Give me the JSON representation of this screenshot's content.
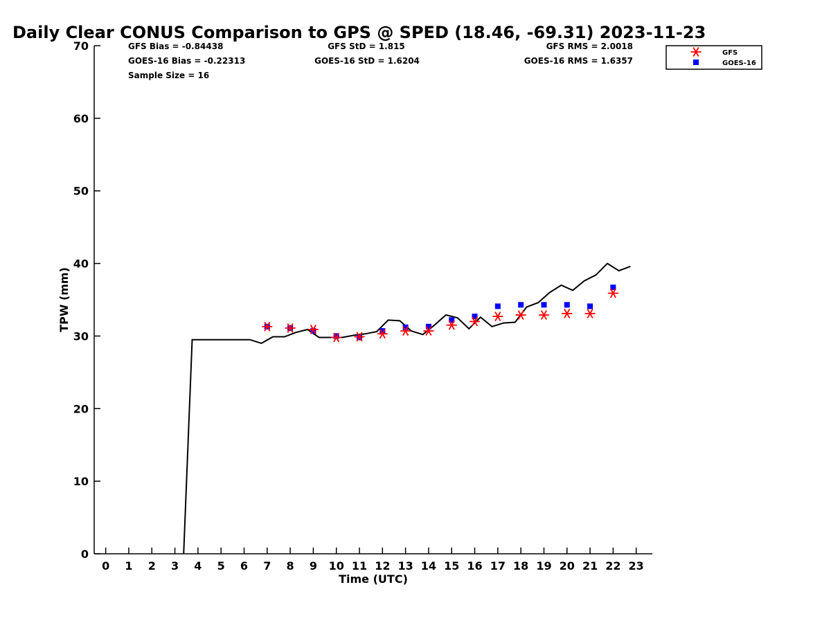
{
  "chart_data": {
    "type": "line",
    "title": "Daily Clear CONUS Comparison to GPS @ SPED (18.46, -69.31) 2023-11-23",
    "xlabel": "Time (UTC)",
    "ylabel": "TPW (mm)",
    "xlim": [
      -0.5,
      23.7
    ],
    "ylim": [
      0,
      70
    ],
    "xticks": [
      0,
      1,
      2,
      3,
      4,
      5,
      6,
      7,
      8,
      9,
      10,
      11,
      12,
      13,
      14,
      15,
      16,
      17,
      18,
      19,
      20,
      21,
      22,
      23
    ],
    "yticks": [
      0,
      10,
      20,
      30,
      40,
      50,
      60,
      70
    ],
    "grid": false,
    "legend_position": "top-right",
    "stats": {
      "gfs_bias": "GFS Bias = -0.84438",
      "gfs_std": "GFS StD = 1.815",
      "gfs_rms": "GFS RMS = 2.0018",
      "goes_bias": "GOES-16 Bias = -0.22313",
      "goes_std": "GOES-16 StD = 1.6204",
      "goes_rms": "GOES-16 RMS = 1.6357",
      "sample_size": "Sample Size = 16"
    },
    "gps_line": {
      "color": "#000000",
      "x": [
        3.38,
        3.75,
        4,
        5,
        6,
        6.25,
        6.75,
        7.25,
        7.75,
        8.25,
        8.75,
        9.25,
        9.75,
        10.25,
        10.75,
        11.25,
        11.75,
        12.25,
        12.75,
        13.25,
        13.75,
        14.25,
        14.75,
        15.25,
        15.75,
        16.25,
        16.75,
        17.25,
        17.75,
        18.25,
        18.75,
        19.25,
        19.75,
        20.25,
        20.75,
        21.25,
        21.75,
        22.25,
        22.75
      ],
      "y": [
        0,
        29.5,
        29.5,
        29.5,
        29.5,
        29.5,
        29.0,
        29.9,
        29.9,
        30.5,
        30.9,
        29.8,
        29.8,
        29.8,
        30.1,
        30.3,
        30.6,
        32.2,
        32.1,
        30.7,
        30.2,
        31.5,
        32.9,
        32.5,
        31.0,
        32.6,
        31.3,
        31.8,
        31.9,
        34.0,
        34.6,
        36.0,
        37.0,
        36.3,
        37.6,
        38.4,
        40.0,
        39.0,
        39.6
      ]
    },
    "series": [
      {
        "name": "GFS",
        "marker": "asterisk",
        "color": "#ff0000",
        "x": [
          7,
          8,
          9,
          10,
          11,
          12,
          13,
          14,
          15,
          16,
          17,
          18,
          19,
          20,
          21,
          22
        ],
        "values": [
          31.3,
          31.1,
          30.9,
          29.8,
          29.9,
          30.3,
          30.7,
          30.7,
          31.5,
          32.0,
          32.7,
          32.9,
          32.9,
          33.1,
          33.1,
          35.9
        ]
      },
      {
        "name": "GOES-16",
        "marker": "square",
        "color": "#0000ff",
        "x": [
          7,
          8,
          9,
          10,
          11,
          12,
          13,
          14,
          15,
          16,
          17,
          18,
          19,
          20,
          21,
          22
        ],
        "values": [
          31.3,
          31.1,
          30.7,
          30.0,
          29.8,
          30.7,
          31.2,
          31.3,
          32.2,
          32.7,
          34.1,
          34.3,
          34.3,
          34.3,
          34.1,
          36.7
        ]
      }
    ]
  }
}
